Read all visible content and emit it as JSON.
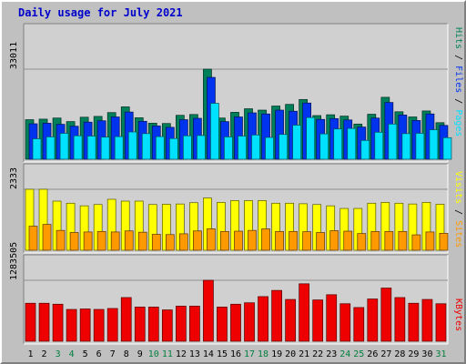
{
  "title": "Daily usage for July 2021",
  "colors": {
    "background": "#c0c0c0",
    "plot": "#d0d0d0",
    "title": "#0000cc",
    "hits": "#00805a",
    "files": "#0033ee",
    "pages": "#00e0ff",
    "visits": "#ffff00",
    "sites": "#ff9900",
    "kbytes": "#ee0000",
    "weekend_label": "#007f3f",
    "weekday_label": "#000000"
  },
  "chart_data": [
    {
      "type": "bar",
      "panel": "hits-files-pages",
      "categories": [
        "1",
        "2",
        "3",
        "4",
        "5",
        "6",
        "7",
        "8",
        "9",
        "10",
        "11",
        "12",
        "13",
        "14",
        "15",
        "16",
        "17",
        "18",
        "19",
        "20",
        "21",
        "22",
        "23",
        "24",
        "25",
        "26",
        "27",
        "28",
        "29",
        "30",
        "31"
      ],
      "weekend_days": [
        "3",
        "4",
        "10",
        "11",
        "17",
        "18",
        "24",
        "25",
        "31"
      ],
      "max_label": "33011",
      "ymax": 33011,
      "series": [
        {
          "name": "Hits",
          "values": [
            14500,
            14700,
            15100,
            13800,
            15400,
            15700,
            17100,
            19200,
            15200,
            13200,
            13100,
            16100,
            16400,
            33011,
            15100,
            17200,
            18500,
            18000,
            19500,
            20100,
            21900,
            16000,
            16300,
            15800,
            12900,
            16500,
            22700,
            17400,
            15500,
            17700,
            13400
          ]
        },
        {
          "name": "Files",
          "values": [
            13000,
            13200,
            12800,
            12100,
            13600,
            14100,
            15500,
            17300,
            13900,
            12200,
            11700,
            14500,
            15000,
            30000,
            13800,
            15500,
            17000,
            16600,
            18000,
            17600,
            20600,
            14600,
            14900,
            14400,
            11800,
            15100,
            20800,
            16200,
            14200,
            16600,
            12400
          ]
        },
        {
          "name": "Pages",
          "values": [
            7500,
            8200,
            9500,
            8600,
            8500,
            8100,
            8300,
            10000,
            9400,
            8300,
            7600,
            8600,
            8700,
            20500,
            8200,
            8500,
            8900,
            8000,
            9100,
            12500,
            15300,
            9300,
            11100,
            11300,
            6900,
            9900,
            12900,
            9400,
            9500,
            10800,
            7900
          ]
        }
      ]
    },
    {
      "type": "bar",
      "panel": "visits-sites",
      "categories": [
        "1",
        "2",
        "3",
        "4",
        "5",
        "6",
        "7",
        "8",
        "9",
        "10",
        "11",
        "12",
        "13",
        "14",
        "15",
        "16",
        "17",
        "18",
        "19",
        "20",
        "21",
        "22",
        "23",
        "24",
        "25",
        "26",
        "27",
        "28",
        "29",
        "30",
        "31"
      ],
      "max_label": "2333",
      "ymax": 2333,
      "series": [
        {
          "name": "Visits",
          "values": [
            2333,
            2333,
            1880,
            1800,
            1700,
            1750,
            1950,
            1880,
            1880,
            1750,
            1760,
            1770,
            1820,
            2000,
            1830,
            1900,
            1900,
            1900,
            1800,
            1800,
            1780,
            1750,
            1700,
            1600,
            1600,
            1800,
            1830,
            1800,
            1770,
            1830,
            1760
          ]
        },
        {
          "name": "Sites",
          "values": [
            920,
            990,
            760,
            680,
            700,
            720,
            700,
            740,
            690,
            610,
            600,
            630,
            740,
            820,
            720,
            730,
            760,
            820,
            720,
            720,
            710,
            680,
            750,
            730,
            640,
            720,
            720,
            720,
            590,
            700,
            650
          ]
        }
      ]
    },
    {
      "type": "bar",
      "panel": "kbytes",
      "categories": [
        "1",
        "2",
        "3",
        "4",
        "5",
        "6",
        "7",
        "8",
        "9",
        "10",
        "11",
        "12",
        "13",
        "14",
        "15",
        "16",
        "17",
        "18",
        "19",
        "20",
        "21",
        "22",
        "23",
        "24",
        "25",
        "26",
        "27",
        "28",
        "29",
        "30",
        "31"
      ],
      "max_label": "1283505",
      "ymax": 1283505,
      "series": [
        {
          "name": "KBytes",
          "values": [
            800000,
            800000,
            780000,
            670000,
            680000,
            670000,
            690000,
            920000,
            720000,
            720000,
            660000,
            740000,
            740000,
            1283505,
            720000,
            780000,
            810000,
            940000,
            1070000,
            880000,
            1210000,
            870000,
            980000,
            790000,
            710000,
            890000,
            1120000,
            920000,
            800000,
            880000,
            790000
          ]
        }
      ]
    }
  ]
}
